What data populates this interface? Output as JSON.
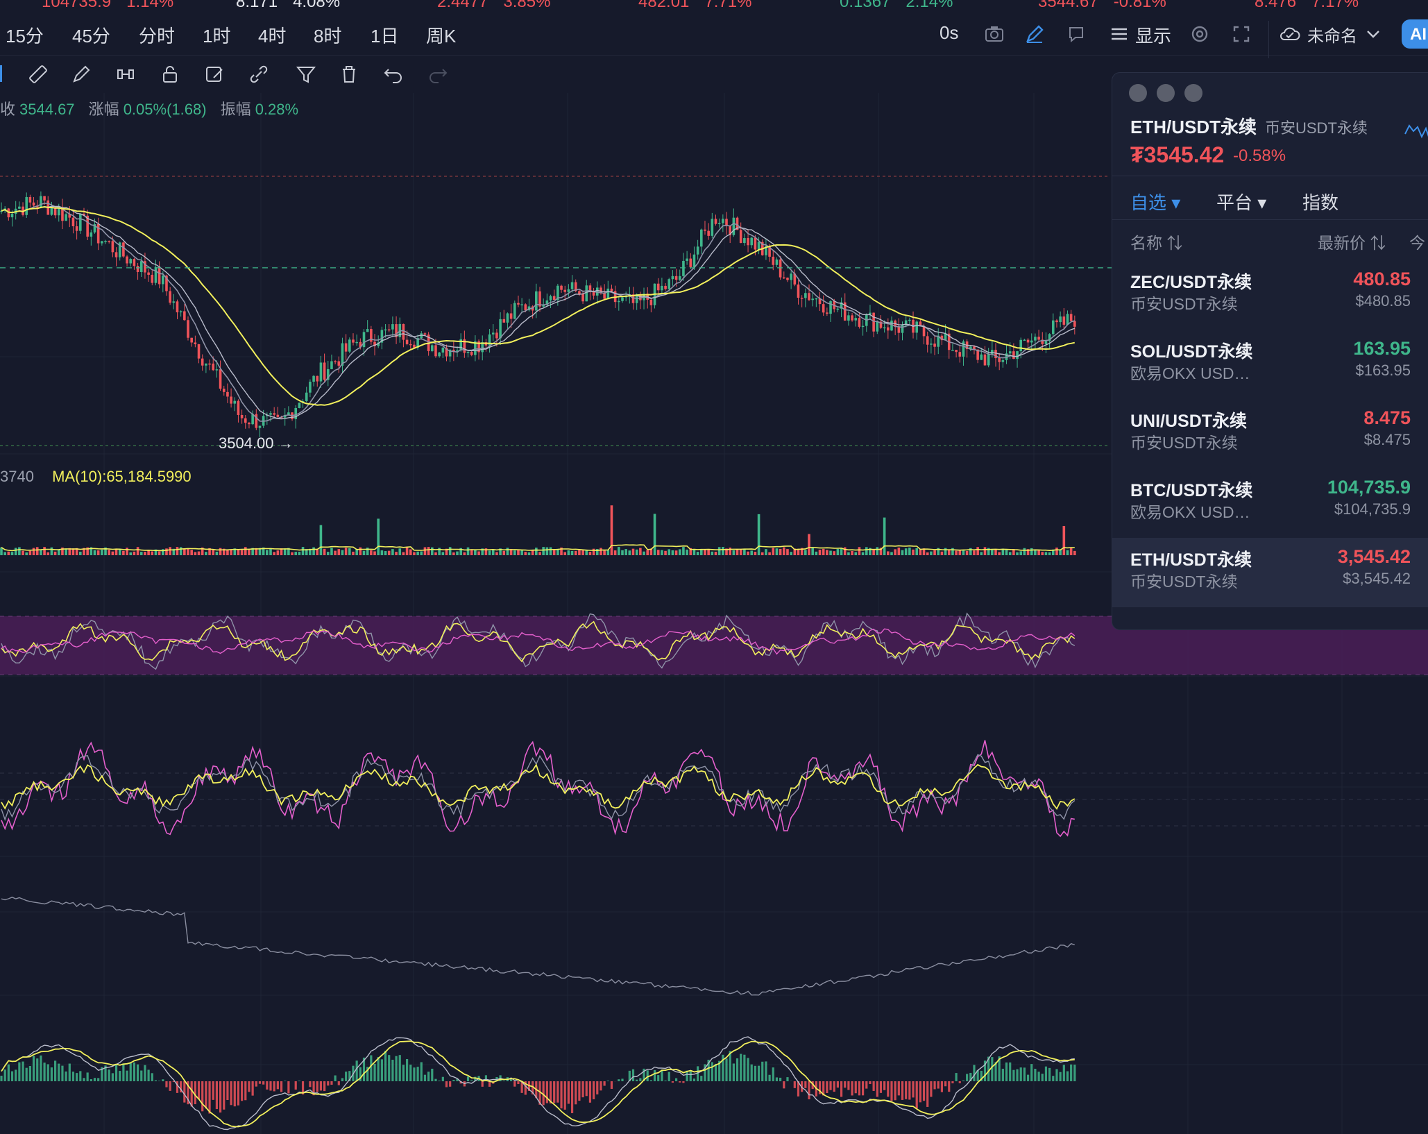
{
  "ticker_strip": [
    {
      "price": "104735.9",
      "change": "1.14%",
      "color": "#f0545a"
    },
    {
      "price": "8.171",
      "change": "4.08%",
      "color": "#e6e8ee"
    },
    {
      "price": "2.4477",
      "change": "3.85%",
      "color": "#f0545a"
    },
    {
      "price": "482.01",
      "change": "7.71%",
      "color": "#f0545a"
    },
    {
      "price": "0.1367",
      "change": "2.14%",
      "color": "#3fb68b"
    },
    {
      "price": "3544.67",
      "change": "-0.81%",
      "color": "#f0545a"
    },
    {
      "price": "8.476",
      "change": "7.17%",
      "color": "#f0545a"
    }
  ],
  "intervals": [
    "15分",
    "45分",
    "分时",
    "1时",
    "4时",
    "8时",
    "1日",
    "周K"
  ],
  "toolbar_right": {
    "countdown": "0s",
    "display_label": "显示",
    "layout_name": "未命名",
    "ai_label": "AI"
  },
  "icons": {
    "camera": "camera-icon",
    "pen": "pen-icon",
    "alert": "alert-icon",
    "menu": "menu-icon",
    "settings": "settings-icon",
    "fullscreen": "fullscreen-icon",
    "cloud": "cloud-icon",
    "chevron": "chevron-down-icon",
    "ruler": "ruler-icon",
    "brush": "brush-icon",
    "magnet": "magnet-icon",
    "lock": "lock-icon",
    "edit": "edit-icon",
    "link": "link-icon",
    "filter": "filter-icon",
    "trash": "trash-icon",
    "undo": "undo-icon",
    "redo": "redo-icon"
  },
  "ohlc_info": {
    "close_label": "收",
    "close_value": "3544.67",
    "change_label": "涨幅",
    "change_value": "0.05%(1.68)",
    "amplitude_label": "振幅",
    "amplitude_value": "0.28%"
  },
  "volume_info": {
    "partial_value": "3740",
    "ma10": "MA(10):65,184.5990"
  },
  "low_label": "3504.00 →",
  "watchlist": {
    "header": {
      "pair": "ETH/USDT永续",
      "exchange": "币安USDT永续",
      "price": "₮3545.42",
      "change": "-0.58%"
    },
    "tabs": [
      "自选",
      "平台",
      "指数"
    ],
    "columns": {
      "name": "名称",
      "price": "最新价",
      "change_partial": "今"
    },
    "rows": [
      {
        "pair": "ZEC/USDT永续",
        "exchange": "币安USDT永续",
        "price": "480.85",
        "usd": "$480.85",
        "dir": "down"
      },
      {
        "pair": "SOL/USDT永续",
        "exchange": "欧易OKX USD…",
        "price": "163.95",
        "usd": "$163.95",
        "dir": "up"
      },
      {
        "pair": "UNI/USDT永续",
        "exchange": "币安USDT永续",
        "price": "8.475",
        "usd": "$8.475",
        "dir": "down"
      },
      {
        "pair": "BTC/USDT永续",
        "exchange": "欧易OKX USD…",
        "price": "104,735.9",
        "usd": "$104,735.9",
        "dir": "up"
      },
      {
        "pair": "ETH/USDT永续",
        "exchange": "币安USDT永续",
        "price": "3,545.42",
        "usd": "$3,545.42",
        "dir": "down"
      }
    ]
  },
  "colors": {
    "up": "#3fb68b",
    "down": "#f0545a",
    "accent": "#3d8fe8",
    "ma_yellow": "#f2f05c",
    "ma_gray": "#8f93a8",
    "rsi_band": "#4a1f57",
    "kdj_pink": "#e45fcc"
  },
  "chart_data": {
    "type": "line",
    "title": "",
    "xlabel": "",
    "ylabel": "",
    "series": [
      {
        "values": [
          3558,
          3560,
          3555,
          3548,
          3542,
          3525,
          3510,
          3508,
          3520,
          3528,
          3530,
          3526,
          3527,
          3535,
          3540,
          3538,
          3536,
          3542,
          3557,
          3550,
          3540,
          3535,
          3532,
          3530,
          3526,
          3523,
          3528,
          3533
        ]
      }
    ],
    "price_levels": {
      "current": 3544.67,
      "low": 3504.0
    }
  }
}
